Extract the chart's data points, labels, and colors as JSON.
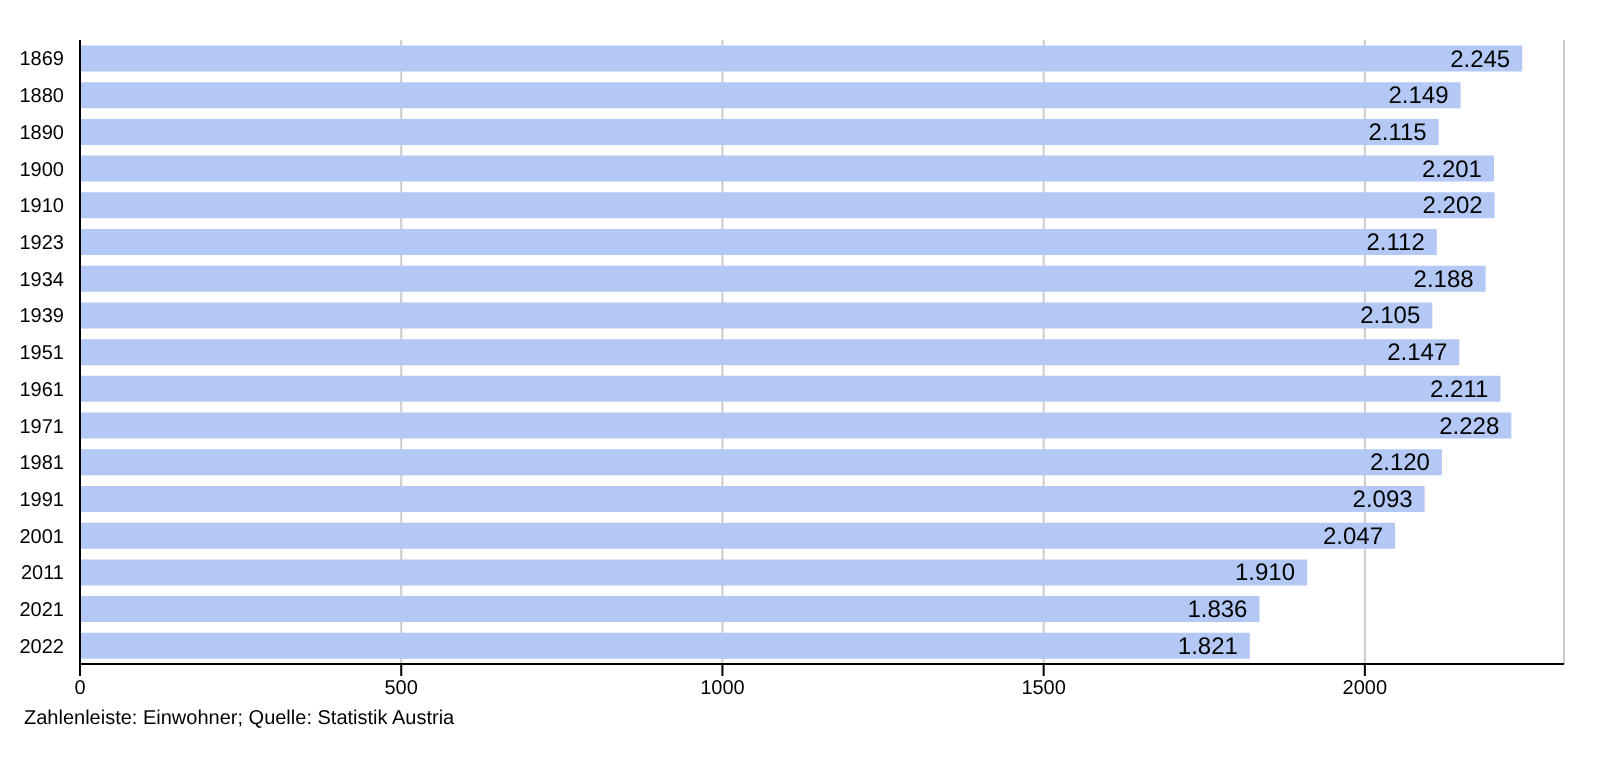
{
  "chart_data": {
    "type": "bar",
    "orientation": "horizontal",
    "categories": [
      "1869",
      "1880",
      "1890",
      "1900",
      "1910",
      "1923",
      "1934",
      "1939",
      "1951",
      "1961",
      "1971",
      "1981",
      "1991",
      "2001",
      "2011",
      "2021",
      "2022"
    ],
    "values": [
      2245,
      2149,
      2115,
      2201,
      2202,
      2112,
      2188,
      2105,
      2147,
      2211,
      2228,
      2120,
      2093,
      2047,
      1910,
      1836,
      1821
    ],
    "value_labels": [
      "2.245",
      "2.149",
      "2.115",
      "2.201",
      "2.202",
      "2.112",
      "2.188",
      "2.105",
      "2.147",
      "2.211",
      "2.228",
      "2.120",
      "2.093",
      "2.047",
      "1.910",
      "1.836",
      "1.821"
    ],
    "color": "#b3c8f5",
    "xlim": [
      0,
      2310
    ],
    "xticks": [
      0,
      500,
      1000,
      1500,
      2000
    ],
    "grid": "x",
    "annotations": [
      "Zahlenleiste: Einwohner; Quelle: Statistik Austria"
    ]
  }
}
